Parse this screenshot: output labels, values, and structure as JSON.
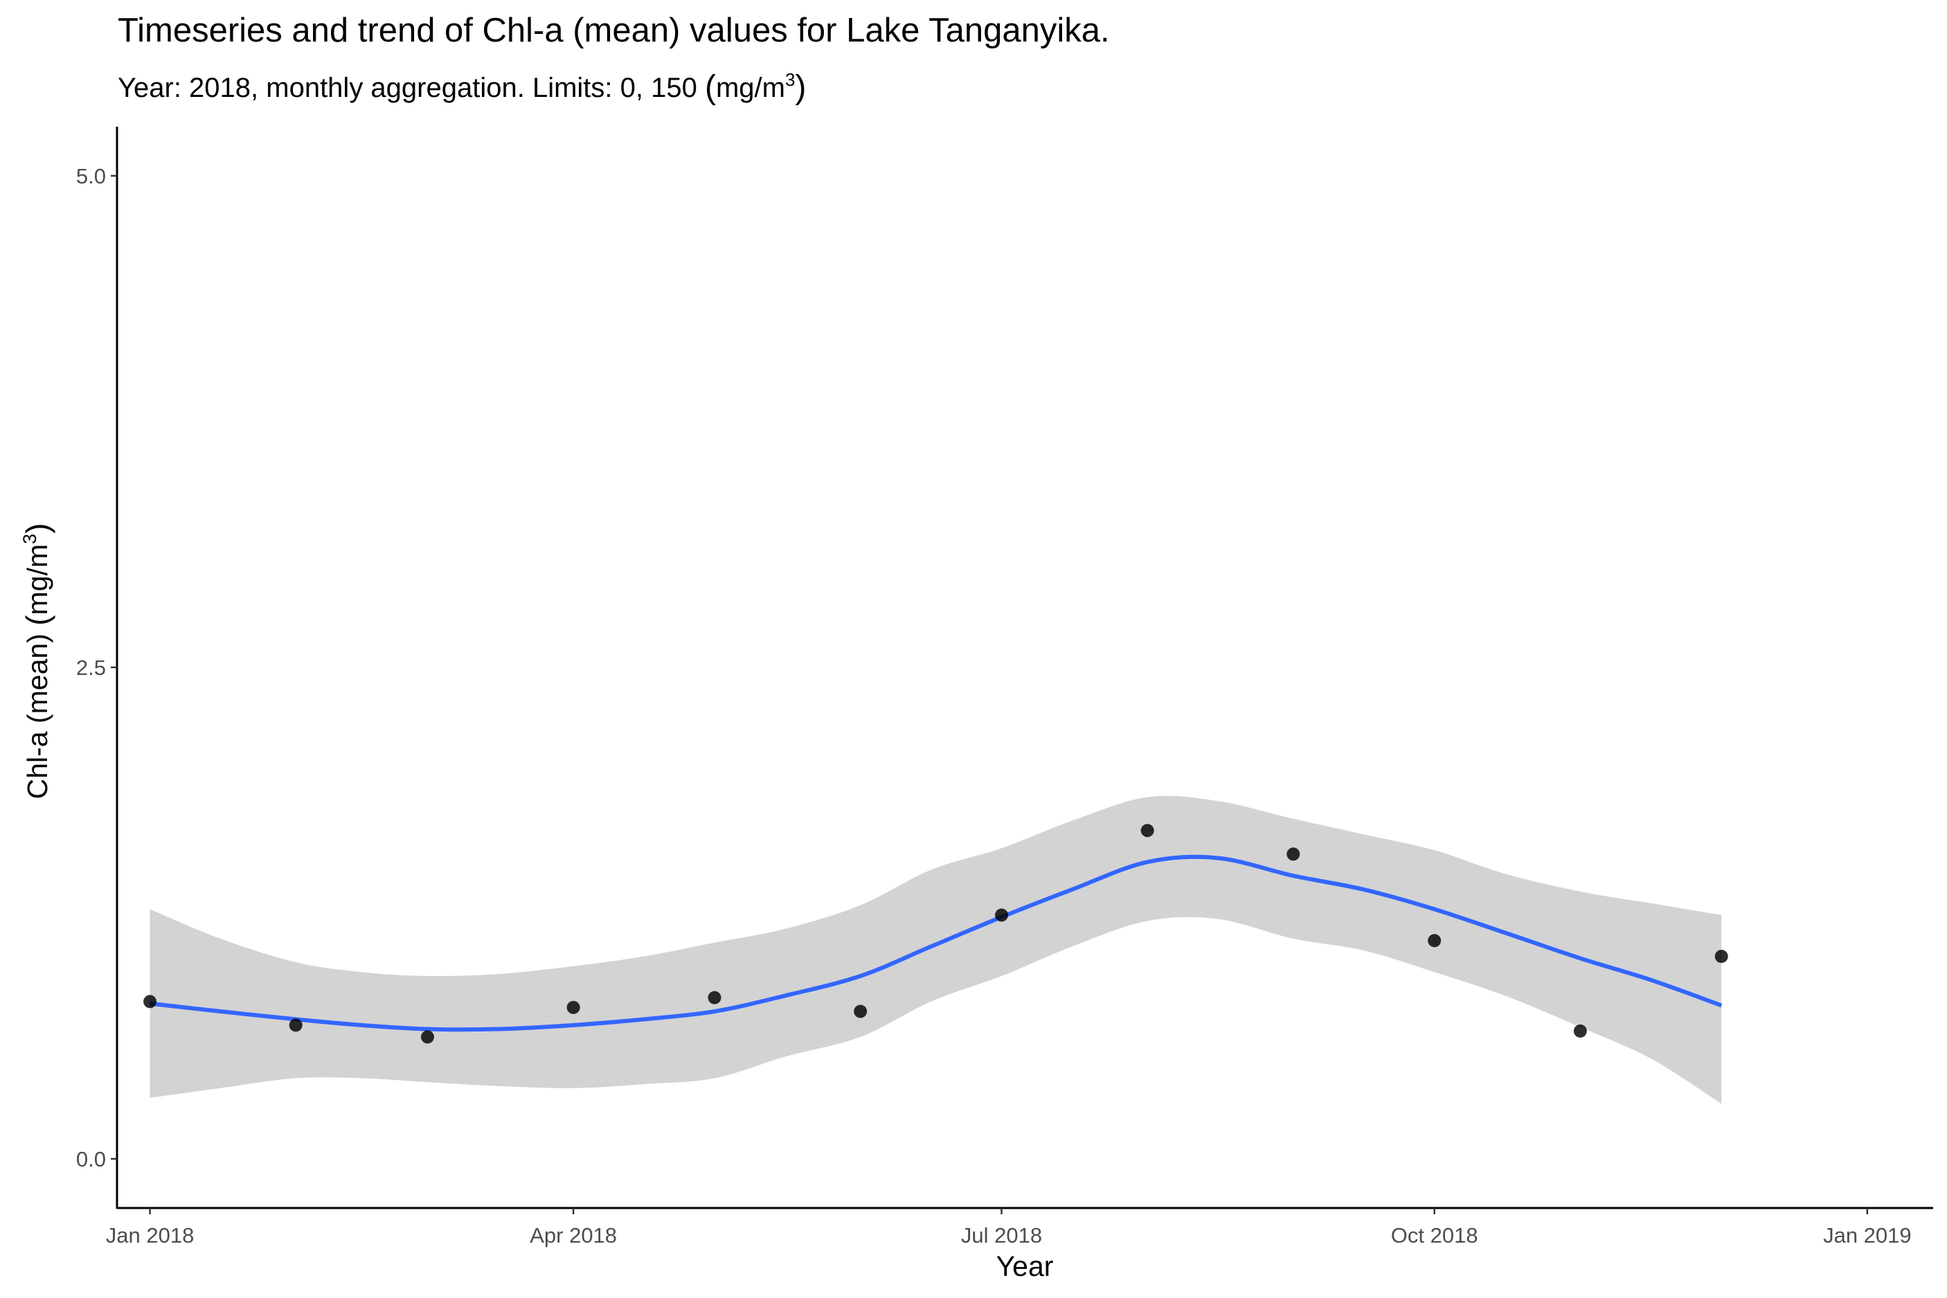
{
  "chart_data": {
    "type": "line",
    "title": "Timeseries  and trend of Chl-a (mean) values for Lake Tanganyika.",
    "subtitle": {
      "prefix": "Year: 2018, monthly aggregation. Limits: 0, 150 ",
      "unit_base": "mg/m",
      "unit_exp": "3"
    },
    "xlabel": "Year",
    "ylabel": {
      "prefix": "Chl-a (mean) ",
      "unit_base": "mg/m",
      "unit_exp": "3"
    },
    "xlim": [
      "2017-12-25",
      "2019-01-15"
    ],
    "ylim": [
      -0.25,
      5.25
    ],
    "x_ticks": [
      {
        "date": "2018-01-01",
        "label": "Jan 2018"
      },
      {
        "date": "2018-04-01",
        "label": "Apr 2018"
      },
      {
        "date": "2018-07-01",
        "label": "Jul 2018"
      },
      {
        "date": "2018-10-01",
        "label": "Oct 2018"
      },
      {
        "date": "2019-01-01",
        "label": "Jan 2019"
      }
    ],
    "y_ticks": [
      {
        "value": 0,
        "label": "0.0"
      },
      {
        "value": 2.5,
        "label": "2.5"
      },
      {
        "value": 5,
        "label": "5.0"
      }
    ],
    "grid": false,
    "series": [
      {
        "kind": "points",
        "color": "#000000",
        "points": [
          {
            "x": "2018-01-01",
            "y": 0.8
          },
          {
            "x": "2018-02-01",
            "y": 0.68
          },
          {
            "x": "2018-03-01",
            "y": 0.62
          },
          {
            "x": "2018-04-01",
            "y": 0.77
          },
          {
            "x": "2018-05-01",
            "y": 0.82
          },
          {
            "x": "2018-06-01",
            "y": 0.75
          },
          {
            "x": "2018-07-01",
            "y": 1.24
          },
          {
            "x": "2018-08-01",
            "y": 1.67
          },
          {
            "x": "2018-09-01",
            "y": 1.55
          },
          {
            "x": "2018-10-01",
            "y": 1.11
          },
          {
            "x": "2018-11-01",
            "y": 0.65
          },
          {
            "x": "2018-12-01",
            "y": 1.03
          }
        ]
      },
      {
        "kind": "trend",
        "color": "#3366FF",
        "band_color": "#D3D3D3",
        "points": [
          {
            "x": "2018-01-01",
            "y": 0.79,
            "lo": 0.31,
            "hi": 1.27
          },
          {
            "x": "2018-01-16",
            "y": 0.75,
            "lo": 0.36,
            "hi": 1.12
          },
          {
            "x": "2018-02-01",
            "y": 0.71,
            "lo": 0.41,
            "hi": 1.0
          },
          {
            "x": "2018-02-15",
            "y": 0.68,
            "lo": 0.41,
            "hi": 0.95
          },
          {
            "x": "2018-03-01",
            "y": 0.66,
            "lo": 0.39,
            "hi": 0.93
          },
          {
            "x": "2018-03-16",
            "y": 0.66,
            "lo": 0.37,
            "hi": 0.94
          },
          {
            "x": "2018-04-01",
            "y": 0.68,
            "lo": 0.36,
            "hi": 0.98
          },
          {
            "x": "2018-04-16",
            "y": 0.71,
            "lo": 0.38,
            "hi": 1.03
          },
          {
            "x": "2018-05-01",
            "y": 0.75,
            "lo": 0.41,
            "hi": 1.1
          },
          {
            "x": "2018-05-16",
            "y": 0.83,
            "lo": 0.52,
            "hi": 1.17
          },
          {
            "x": "2018-06-01",
            "y": 0.93,
            "lo": 0.62,
            "hi": 1.29
          },
          {
            "x": "2018-06-16",
            "y": 1.08,
            "lo": 0.8,
            "hi": 1.47
          },
          {
            "x": "2018-07-01",
            "y": 1.23,
            "lo": 0.93,
            "hi": 1.58
          },
          {
            "x": "2018-07-16",
            "y": 1.37,
            "lo": 1.08,
            "hi": 1.72
          },
          {
            "x": "2018-08-01",
            "y": 1.51,
            "lo": 1.21,
            "hi": 1.84
          },
          {
            "x": "2018-08-16",
            "y": 1.53,
            "lo": 1.22,
            "hi": 1.82
          },
          {
            "x": "2018-09-01",
            "y": 1.44,
            "lo": 1.12,
            "hi": 1.73
          },
          {
            "x": "2018-09-16",
            "y": 1.37,
            "lo": 1.06,
            "hi": 1.65
          },
          {
            "x": "2018-10-01",
            "y": 1.27,
            "lo": 0.95,
            "hi": 1.57
          },
          {
            "x": "2018-10-16",
            "y": 1.15,
            "lo": 0.83,
            "hi": 1.45
          },
          {
            "x": "2018-11-01",
            "y": 1.02,
            "lo": 0.67,
            "hi": 1.36
          },
          {
            "x": "2018-11-16",
            "y": 0.91,
            "lo": 0.51,
            "hi": 1.3
          },
          {
            "x": "2018-12-01",
            "y": 0.78,
            "lo": 0.28,
            "hi": 1.24
          }
        ]
      }
    ]
  }
}
